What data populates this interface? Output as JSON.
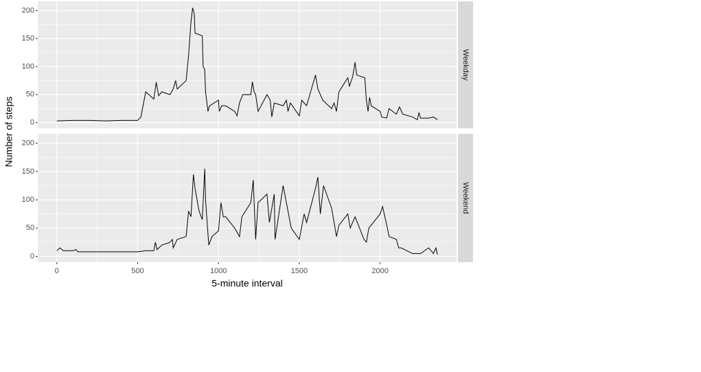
{
  "chart_data": {
    "type": "line",
    "x_label": "5-minute interval",
    "y_label": "Number of steps",
    "xlim": [
      -117.75,
      2472.75
    ],
    "xticks": [
      0,
      500,
      1000,
      1500,
      2000
    ],
    "ylim": [
      -10.3,
      216.6
    ],
    "yticks": [
      0,
      50,
      100,
      150,
      200
    ],
    "grid": true,
    "series": [
      {
        "name": "Weekday",
        "color": "#000000",
        "x": [
          0,
          100,
          200,
          300,
          400,
          500,
          520,
          550,
          600,
          615,
          630,
          650,
          700,
          720,
          735,
          745,
          800,
          815,
          830,
          840,
          850,
          855,
          900,
          905,
          915,
          920,
          935,
          945,
          1000,
          1005,
          1020,
          1045,
          1100,
          1115,
          1130,
          1150,
          1200,
          1210,
          1220,
          1230,
          1245,
          1300,
          1320,
          1330,
          1345,
          1400,
          1420,
          1430,
          1445,
          1500,
          1515,
          1545,
          1600,
          1615,
          1645,
          1700,
          1715,
          1730,
          1745,
          1800,
          1810,
          1830,
          1845,
          1855,
          1905,
          1915,
          1925,
          1935,
          1945,
          2000,
          2010,
          2040,
          2055,
          2100,
          2120,
          2140,
          2200,
          2230,
          2240,
          2250,
          2300,
          2330,
          2355
        ],
        "values": [
          3,
          4,
          4,
          3,
          4,
          4,
          10,
          55,
          42,
          72,
          48,
          55,
          50,
          60,
          75,
          60,
          75,
          120,
          180,
          205,
          195,
          160,
          155,
          100,
          95,
          55,
          20,
          30,
          40,
          20,
          30,
          30,
          20,
          12,
          35,
          50,
          50,
          73,
          55,
          50,
          20,
          50,
          40,
          10,
          35,
          30,
          40,
          20,
          35,
          12,
          40,
          30,
          85,
          60,
          40,
          25,
          35,
          20,
          55,
          80,
          65,
          82,
          108,
          85,
          80,
          40,
          20,
          45,
          30,
          20,
          10,
          8,
          25,
          15,
          28,
          15,
          10,
          5,
          18,
          8,
          8,
          10,
          5
        ]
      },
      {
        "name": "Weekend",
        "color": "#000000",
        "x": [
          0,
          20,
          40,
          100,
          120,
          130,
          300,
          400,
          500,
          550,
          600,
          610,
          620,
          650,
          700,
          715,
          720,
          745,
          800,
          815,
          830,
          845,
          855,
          880,
          900,
          915,
          920,
          940,
          960,
          1000,
          1015,
          1030,
          1045,
          1100,
          1130,
          1145,
          1200,
          1215,
          1230,
          1245,
          1300,
          1315,
          1330,
          1345,
          1350,
          1400,
          1450,
          1500,
          1530,
          1545,
          1600,
          1615,
          1630,
          1650,
          1700,
          1730,
          1745,
          1800,
          1815,
          1845,
          1900,
          1915,
          1930,
          2000,
          2015,
          2045,
          2055,
          2100,
          2115,
          2130,
          2200,
          2250,
          2300,
          2330,
          2345,
          2355
        ],
        "values": [
          10,
          15,
          10,
          10,
          12,
          8,
          8,
          8,
          8,
          10,
          10,
          25,
          12,
          20,
          25,
          30,
          15,
          30,
          35,
          80,
          70,
          145,
          120,
          80,
          65,
          155,
          100,
          20,
          35,
          45,
          95,
          70,
          70,
          50,
          35,
          70,
          95,
          135,
          30,
          95,
          110,
          60,
          85,
          110,
          30,
          125,
          50,
          30,
          75,
          60,
          120,
          140,
          75,
          125,
          85,
          35,
          55,
          75,
          50,
          70,
          30,
          25,
          50,
          75,
          88,
          50,
          35,
          30,
          15,
          15,
          5,
          5,
          15,
          5,
          15,
          3
        ]
      }
    ]
  }
}
